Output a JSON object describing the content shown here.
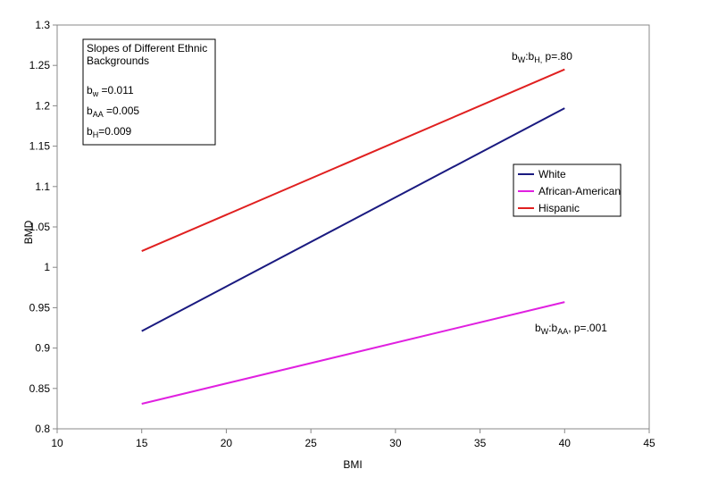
{
  "chart_data": {
    "type": "line",
    "xlabel": "BMI",
    "ylabel": "BMD",
    "xlim": [
      10,
      45
    ],
    "ylim": [
      0.8,
      1.3
    ],
    "x_ticks": [
      "10",
      "15",
      "20",
      "25",
      "30",
      "35",
      "40",
      "45"
    ],
    "y_ticks": [
      "0.8",
      "0.85",
      "0.9",
      "0.95",
      "1",
      "1.05",
      "1.1",
      "1.15",
      "1.2",
      "1.25",
      "1.3"
    ],
    "grid": false,
    "series": [
      {
        "name": "White",
        "color": "#1a1a80",
        "x": [
          15,
          40
        ],
        "y": [
          0.921,
          1.197
        ]
      },
      {
        "name": "African-American",
        "color": "#e020e0",
        "x": [
          15,
          40
        ],
        "y": [
          0.831,
          0.957
        ]
      },
      {
        "name": "Hispanic",
        "color": "#e02020",
        "x": [
          15,
          40
        ],
        "y": [
          1.02,
          1.245
        ]
      }
    ],
    "legend_position": "right",
    "textbox": {
      "title_line1": "Slopes of Different Ethnic",
      "title_line2": "Backgrounds",
      "bw_base": "b",
      "bw_sub": "w",
      "bw_val": " =0.011",
      "baa_base": "b",
      "baa_sub": "AA",
      "baa_val": " =0.005",
      "bh_base": "b",
      "bh_sub": "H",
      "bh_val": "=0.009"
    },
    "annotations": {
      "wh": {
        "b1": "b",
        "s1": "W",
        "mid": ":b",
        "s2": "H,",
        "end": " p=.80"
      },
      "waa": {
        "b1": "b",
        "s1": "W",
        "mid": ":b",
        "s2": "AA",
        "end": ", p=.001"
      }
    }
  }
}
